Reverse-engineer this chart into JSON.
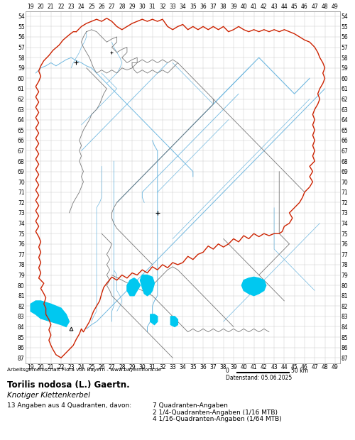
{
  "fig_width": 5.0,
  "fig_height": 6.2,
  "dpi": 100,
  "bg_color": "#ffffff",
  "grid_color": "#cccccc",
  "grid_lw": 0.35,
  "x_ticks": [
    19,
    20,
    21,
    22,
    23,
    24,
    25,
    26,
    27,
    28,
    29,
    30,
    31,
    32,
    33,
    34,
    35,
    36,
    37,
    38,
    39,
    40,
    41,
    42,
    43,
    44,
    45,
    46,
    47,
    48,
    49
  ],
  "y_ticks": [
    54,
    55,
    56,
    57,
    58,
    59,
    60,
    61,
    62,
    63,
    64,
    65,
    66,
    67,
    68,
    69,
    70,
    71,
    72,
    73,
    74,
    75,
    76,
    77,
    78,
    79,
    80,
    81,
    82,
    83,
    84,
    85,
    86,
    87
  ],
  "x_range": [
    18.5,
    49.5
  ],
  "y_range": [
    53.5,
    87.5
  ],
  "tick_fs": 5.5,
  "bc": "#cc2200",
  "ic": "#777777",
  "rc": "#70b8e0",
  "lc": "#00c8f0",
  "footer1": "Arbeitsgemeinschaft Flora von Bayern - www.bayernflora.de",
  "footer_date": "Datenstand: 05.06.2025",
  "sp_name": "Torilis nodosa (L.) Gaertn.",
  "sp_german": "Knotiger Klettenkerbel",
  "st1": "13 Angaben aus 4 Quadranten, davon:",
  "sr1": "7 Quadranten-Angaben",
  "sr2": "2 1/4-Quadranten-Angaben (1/16 MTB)",
  "sr3": "4 1/16-Quadranten-Angaben (1/64 MTB)"
}
